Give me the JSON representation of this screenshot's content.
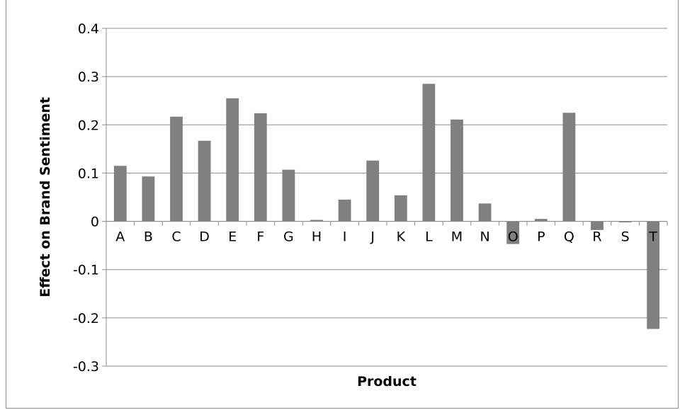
{
  "chart_data": {
    "type": "bar",
    "title": "",
    "xlabel": "Product",
    "ylabel": "Effect on Brand Sentiment",
    "ylim": [
      -0.3,
      0.4
    ],
    "yticks": [
      "0.4",
      "0.3",
      "0.2",
      "0.1",
      "0",
      "-0.1",
      "-0.2",
      "-0.3"
    ],
    "ytick_values": [
      0.4,
      0.3,
      0.2,
      0.1,
      0,
      -0.1,
      -0.2,
      -0.3
    ],
    "categories": [
      "A",
      "B",
      "C",
      "D",
      "E",
      "F",
      "G",
      "H",
      "I",
      "J",
      "K",
      "L",
      "M",
      "N",
      "O",
      "P",
      "Q",
      "R",
      "S",
      "T"
    ],
    "values": [
      0.115,
      0.093,
      0.217,
      0.167,
      0.255,
      0.224,
      0.107,
      0.003,
      0.045,
      0.126,
      0.054,
      0.285,
      0.211,
      0.037,
      -0.047,
      0.005,
      0.225,
      -0.018,
      -0.002,
      -0.223
    ],
    "grid": true,
    "legend": "none",
    "bar_color": "#808080",
    "grid_color": "#8c8c8c"
  }
}
